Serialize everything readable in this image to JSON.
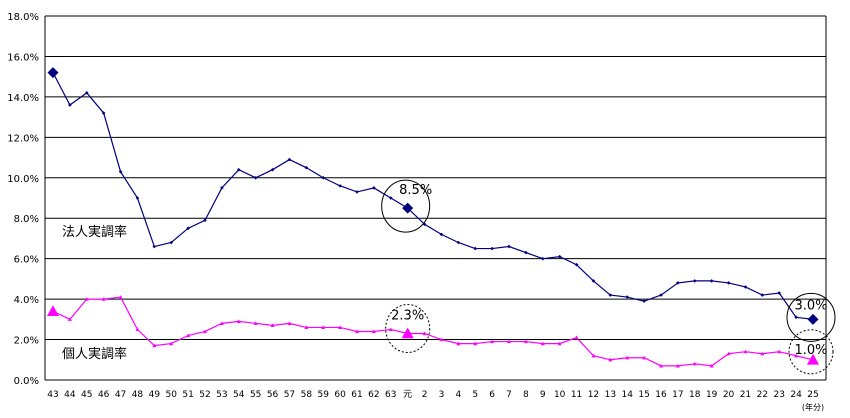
{
  "chart_data": {
    "type": "line",
    "ylim": [
      0,
      18
    ],
    "y_ticks": [
      "0.0%",
      "2.0%",
      "4.0%",
      "6.0%",
      "8.0%",
      "10.0%",
      "12.0%",
      "14.0%",
      "16.0%",
      "18.0%"
    ],
    "categories": [
      "43",
      "44",
      "45",
      "46",
      "47",
      "48",
      "49",
      "50",
      "51",
      "52",
      "53",
      "54",
      "55",
      "56",
      "57",
      "58",
      "59",
      "60",
      "61",
      "62",
      "63",
      "元",
      "2",
      "3",
      "4",
      "5",
      "6",
      "7",
      "8",
      "9",
      "10",
      "11",
      "12",
      "13",
      "14",
      "15",
      "16",
      "17",
      "18",
      "19",
      "20",
      "21",
      "22",
      "23",
      "24",
      "25"
    ],
    "x_unit_label": "(年分)",
    "grid": "horizontal",
    "series": [
      {
        "name": "法人実調率",
        "color": "#000080",
        "marker": "diamond",
        "values": [
          15.2,
          13.6,
          14.2,
          13.2,
          10.3,
          9.0,
          6.6,
          6.8,
          7.5,
          7.9,
          9.5,
          10.4,
          10.0,
          10.4,
          10.9,
          10.5,
          10.0,
          9.6,
          9.3,
          9.5,
          9.0,
          8.5,
          7.7,
          7.2,
          6.8,
          6.5,
          6.5,
          6.6,
          6.3,
          6.0,
          6.1,
          5.7,
          4.9,
          4.2,
          4.1,
          3.9,
          4.2,
          4.8,
          4.9,
          4.9,
          4.8,
          4.6,
          4.2,
          4.3,
          3.1,
          3.0
        ]
      },
      {
        "name": "個人実調率",
        "color": "#ff00ff",
        "marker": "triangle",
        "values": [
          3.4,
          3.0,
          4.0,
          4.0,
          4.1,
          2.5,
          1.7,
          1.8,
          2.2,
          2.4,
          2.8,
          2.9,
          2.8,
          2.7,
          2.8,
          2.6,
          2.6,
          2.6,
          2.4,
          2.4,
          2.5,
          2.3,
          2.3,
          2.0,
          1.8,
          1.8,
          1.9,
          1.9,
          1.9,
          1.8,
          1.8,
          2.1,
          1.2,
          1.0,
          1.1,
          1.1,
          0.7,
          0.7,
          0.8,
          0.7,
          1.3,
          1.4,
          1.3,
          1.4,
          1.2,
          1.0
        ]
      }
    ],
    "annotations": [
      {
        "series": 0,
        "index": 21,
        "text": "8.5%"
      },
      {
        "series": 0,
        "index": 45,
        "text": "3.0%"
      },
      {
        "series": 1,
        "index": 21,
        "text": "2.3%"
      },
      {
        "series": 1,
        "index": 45,
        "text": "1.0%"
      }
    ]
  }
}
